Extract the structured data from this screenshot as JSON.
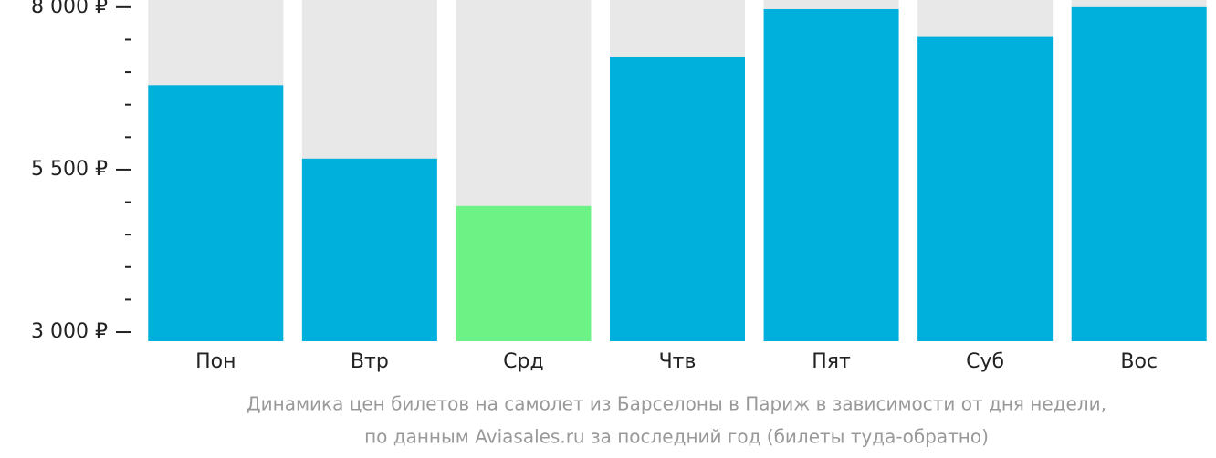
{
  "chart_data": {
    "type": "bar",
    "title": [
      "Динамика цен билетов на самолет из Барселоны в Париж в зависимости от дня недели,",
      "по данным Aviasales.ru за последний год (билеты туда-обратно)"
    ],
    "categories": [
      "Пон",
      "Втр",
      "Срд",
      "Чтв",
      "Пят",
      "Суб",
      "Вос"
    ],
    "values": [
      6800,
      5670,
      4940,
      7240,
      7970,
      7540,
      8000
    ],
    "colors": [
      "#00b0dc",
      "#00b0dc",
      "#6cf285",
      "#00b0dc",
      "#00b0dc",
      "#00b0dc",
      "#00b0dc"
    ],
    "background_color": "#e8e8e8",
    "ylim": [
      2860,
      8110
    ],
    "yticks": [
      {
        "value": 3000,
        "label": "3 000 ₽"
      },
      {
        "value": 5500,
        "label": "5 500 ₽"
      },
      {
        "value": 8000,
        "label": "8 000 ₽"
      }
    ],
    "minor_yticks": [
      3500,
      4000,
      4500,
      5000,
      6000,
      6500,
      7000,
      7500
    ]
  }
}
